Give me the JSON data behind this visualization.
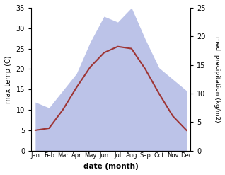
{
  "months": [
    "Jan",
    "Feb",
    "Mar",
    "Apr",
    "May",
    "Jun",
    "Jul",
    "Aug",
    "Sep",
    "Oct",
    "Nov",
    "Dec"
  ],
  "temperature": [
    5.0,
    5.5,
    10.0,
    15.5,
    20.5,
    24.0,
    25.5,
    25.0,
    20.0,
    14.0,
    8.5,
    5.0
  ],
  "precipitation": [
    8.5,
    7.5,
    10.5,
    13.5,
    19.0,
    23.5,
    22.5,
    25.0,
    19.5,
    14.5,
    12.5,
    10.5
  ],
  "temp_color": "#9e3535",
  "precip_fill_color": "#bcc3e8",
  "precip_edge_color": "#bcc3e8",
  "temp_ylim": [
    0,
    35
  ],
  "precip_ylim": [
    0,
    25
  ],
  "temp_yticks": [
    0,
    5,
    10,
    15,
    20,
    25,
    30,
    35
  ],
  "precip_yticks": [
    0,
    5,
    10,
    15,
    20,
    25
  ],
  "xlabel": "date (month)",
  "ylabel_left": "max temp (C)",
  "ylabel_right": "med. precipitation (kg/m2)",
  "fig_width": 3.18,
  "fig_height": 2.47,
  "dpi": 100,
  "bg_color": "#f0f0f0"
}
